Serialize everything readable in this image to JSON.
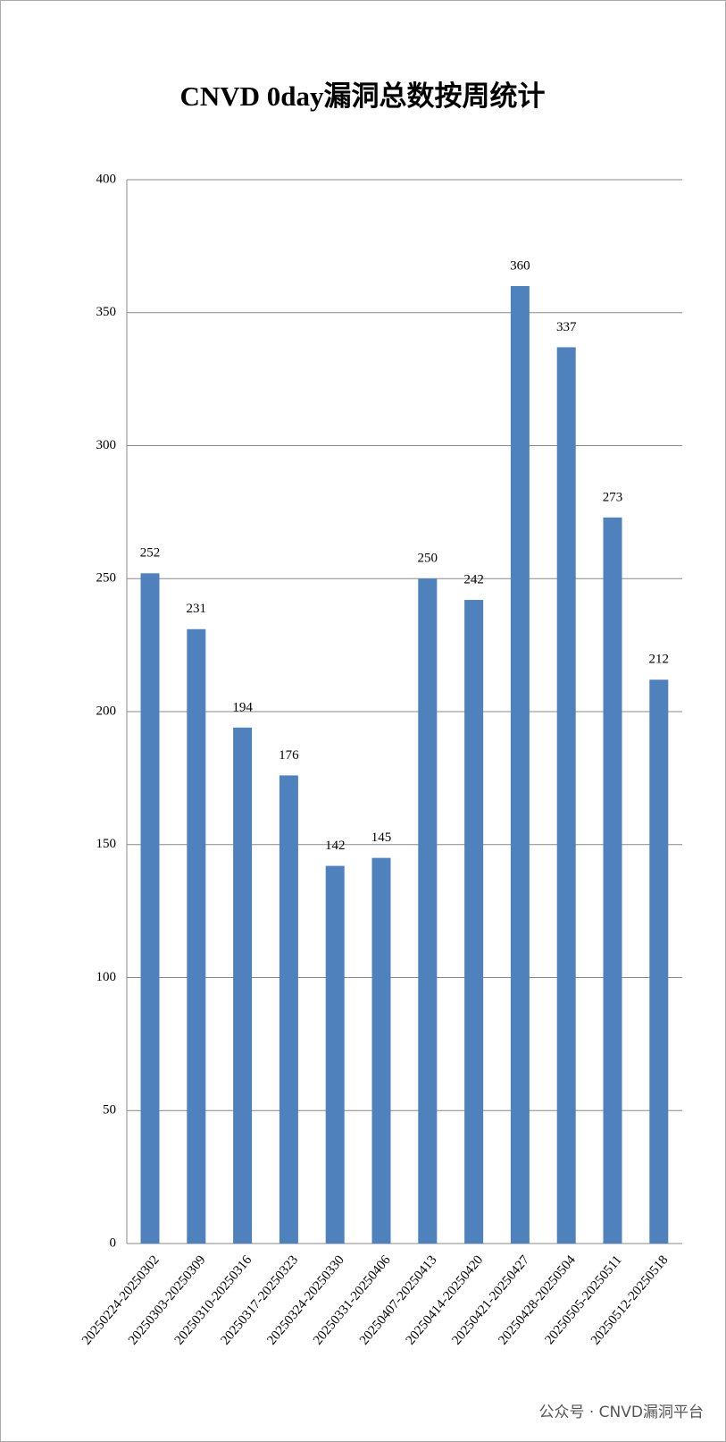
{
  "chart_data": {
    "type": "bar",
    "title": "CNVD 0day漏洞总数按周统计",
    "categories": [
      "20250224-20250302",
      "20250303-20250309",
      "20250310-20250316",
      "20250317-20250323",
      "20250324-20250330",
      "20250331-20250406",
      "20250407-20250413",
      "20250414-20250420",
      "20250421-20250427",
      "20250428-20250504",
      "20250505-20250511",
      "20250512-20250518"
    ],
    "values": [
      252,
      231,
      194,
      176,
      142,
      145,
      250,
      242,
      360,
      337,
      273,
      212
    ],
    "color": "#4f81bd",
    "ylim": [
      0,
      400
    ],
    "yticks": [
      0,
      50,
      100,
      150,
      200,
      250,
      300,
      350,
      400
    ],
    "grid": true,
    "footer": "公众号 · CNVD漏洞平台"
  }
}
